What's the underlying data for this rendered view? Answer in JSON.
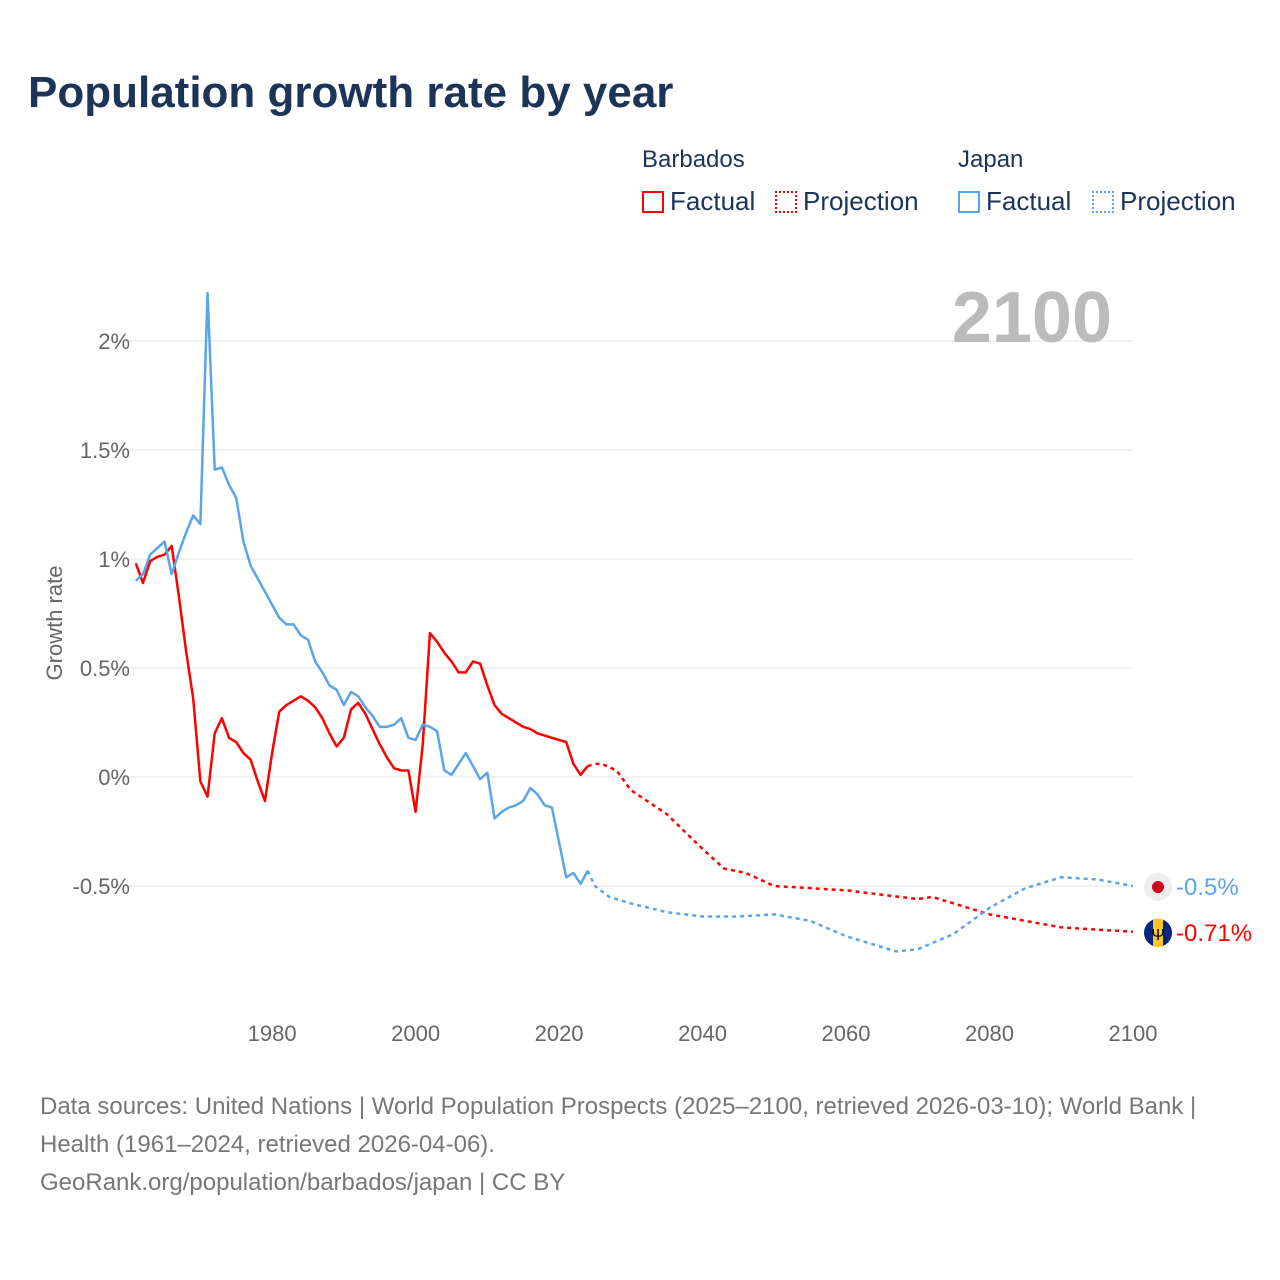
{
  "chart_data": {
    "type": "line",
    "title": "Population growth rate by year",
    "ylabel": "Growth rate",
    "xlabel": "",
    "year_label": "2100",
    "xlim": [
      1961,
      2100
    ],
    "ylim": [
      -1.03,
      2.25
    ],
    "x_ticks": [
      1980,
      2000,
      2020,
      2040,
      2060,
      2080,
      2100
    ],
    "y_ticks": [
      {
        "v": 2,
        "label": "2%"
      },
      {
        "v": 1.5,
        "label": "1.5%"
      },
      {
        "v": 1,
        "label": "1%"
      },
      {
        "v": 0.5,
        "label": "0.5%"
      },
      {
        "v": 0,
        "label": "0%"
      },
      {
        "v": -0.5,
        "label": "-0.5%"
      }
    ],
    "grid": true,
    "legend": {
      "groups": [
        {
          "country": "Barbados",
          "factual": "Factual",
          "projection": "Projection"
        },
        {
          "country": "Japan",
          "factual": "Factual",
          "projection": "Projection"
        }
      ]
    },
    "series": [
      {
        "name": "Barbados",
        "color": "#ff0000",
        "end_label": "-0.71%",
        "factual": {
          "x_start": 1961,
          "values": [
            0.98,
            0.89,
            0.99,
            1.01,
            1.02,
            1.06,
            0.83,
            0.58,
            0.36,
            -0.02,
            -0.09,
            0.2,
            0.27,
            0.18,
            0.16,
            0.11,
            0.08,
            -0.02,
            -0.11,
            0.11,
            0.3,
            0.33,
            0.35,
            0.37,
            0.35,
            0.32,
            0.27,
            0.2,
            0.14,
            0.18,
            0.31,
            0.34,
            0.29,
            0.22,
            0.15,
            0.09,
            0.04,
            0.03,
            0.03,
            -0.16,
            0.15,
            0.66,
            0.62,
            0.57,
            0.53,
            0.48,
            0.48,
            0.53,
            0.52,
            0.42,
            0.33,
            0.29,
            0.27,
            0.25,
            0.23,
            0.22,
            0.2,
            0.19,
            0.18,
            0.17,
            0.16,
            0.06,
            0.01,
            0.05
          ]
        },
        "projection": {
          "x": [
            2024,
            2025,
            2026,
            2028,
            2030,
            2035,
            2040,
            2043,
            2046,
            2050,
            2055,
            2060,
            2065,
            2070,
            2072,
            2075,
            2080,
            2085,
            2090,
            2095,
            2100
          ],
          "values": [
            0.05,
            0.06,
            0.06,
            0.03,
            -0.06,
            -0.17,
            -0.33,
            -0.42,
            -0.44,
            -0.5,
            -0.51,
            -0.52,
            -0.54,
            -0.56,
            -0.55,
            -0.58,
            -0.63,
            -0.66,
            -0.69,
            -0.7,
            -0.71
          ]
        }
      },
      {
        "name": "Japan",
        "color": "#5aa5ea",
        "end_label": "-0.5%",
        "factual": {
          "x_start": 1961,
          "values": [
            0.9,
            0.93,
            1.02,
            1.05,
            1.08,
            0.93,
            1.03,
            1.12,
            1.2,
            1.16,
            2.22,
            1.41,
            1.42,
            1.34,
            1.28,
            1.08,
            0.97,
            0.91,
            0.85,
            0.79,
            0.73,
            0.7,
            0.7,
            0.65,
            0.63,
            0.53,
            0.48,
            0.42,
            0.4,
            0.33,
            0.39,
            0.37,
            0.32,
            0.28,
            0.23,
            0.23,
            0.24,
            0.27,
            0.18,
            0.17,
            0.24,
            0.23,
            0.21,
            0.03,
            0.01,
            0.06,
            0.11,
            0.05,
            -0.01,
            0.02,
            -0.19,
            -0.16,
            -0.14,
            -0.13,
            -0.11,
            -0.05,
            -0.08,
            -0.13,
            -0.14,
            -0.3,
            -0.46,
            -0.44,
            -0.49,
            -0.43
          ]
        },
        "projection": {
          "x": [
            2024,
            2025,
            2027,
            2030,
            2035,
            2040,
            2045,
            2050,
            2055,
            2060,
            2065,
            2067,
            2070,
            2075,
            2080,
            2085,
            2090,
            2095,
            2100
          ],
          "values": [
            -0.43,
            -0.5,
            -0.55,
            -0.58,
            -0.62,
            -0.64,
            -0.64,
            -0.63,
            -0.66,
            -0.73,
            -0.78,
            -0.8,
            -0.79,
            -0.72,
            -0.6,
            -0.51,
            -0.46,
            -0.47,
            -0.5
          ]
        }
      }
    ]
  },
  "footer": {
    "sources": "Data sources: United Nations | World Population Prospects (2025–2100, retrieved 2026-03-10); World Bank | Health (1961–2024, retrieved 2026-04-06).",
    "credit": "GeoRank.org/population/barbados/japan | CC BY"
  }
}
